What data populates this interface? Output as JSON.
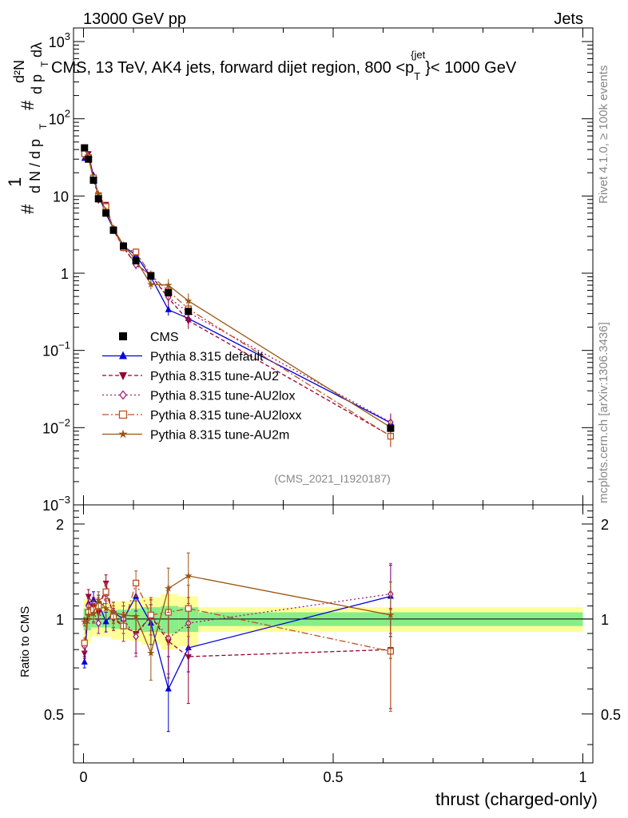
{
  "header": {
    "left": "13000 GeV pp",
    "right": "Jets",
    "title": "CMS, 13 TeV, AK4 jets, forward dijet region, 800 <p_T^{jet}< 1000 GeV",
    "title_parts": [
      "CMS, 13 TeV, AK4 jets, forward dijet region, 800 <p",
      "T",
      "{jet",
      "}< 1000 GeV"
    ]
  },
  "side": {
    "rivet": "Rivet 4.1.0, ≥ 100k events",
    "mcplots": "mcplots.cern.ch [arXiv:1306.3436]"
  },
  "watermark": "(CMS_2021_I1920187)",
  "chart_data": {
    "type": "line",
    "xlabel": "thrust (charged-only)",
    "ylabel": "1/(dN/dp_T) d²N/(dp_T dλ)",
    "ylabel_parts": {
      "num1": "#",
      "one": "1",
      "dN": "d N / d p",
      "t_sub": "T",
      "d2N": "d²N",
      "dpdl": "d p",
      "t_sub2": "T",
      "dl": "dλ"
    },
    "ratio_ylabel": "Ratio to CMS",
    "xlim": [
      -0.02,
      1.02
    ],
    "ylim": [
      0.001,
      1500
    ],
    "ratio_ylim": [
      0.35,
      2.3
    ],
    "x_ticks": [
      {
        "v": 0,
        "label": "0"
      },
      {
        "v": 0.5,
        "label": "0.5"
      },
      {
        "v": 1,
        "label": "1"
      }
    ],
    "y_ticks": [
      {
        "v": 0.001,
        "label": "10",
        "exp": "−3"
      },
      {
        "v": 0.01,
        "label": "10",
        "exp": "−2"
      },
      {
        "v": 0.1,
        "label": "10",
        "exp": "−1"
      },
      {
        "v": 1,
        "label": "1",
        "exp": ""
      },
      {
        "v": 10,
        "label": "10",
        "exp": ""
      },
      {
        "v": 100,
        "label": "10",
        "exp": "2"
      },
      {
        "v": 1000,
        "label": "10",
        "exp": "3"
      }
    ],
    "ratio_ticks": [
      {
        "v": 0.5,
        "label": "0.5"
      },
      {
        "v": 1,
        "label": "1"
      },
      {
        "v": 2,
        "label": "2"
      }
    ],
    "x": [
      0.002,
      0.01,
      0.02,
      0.03,
      0.045,
      0.06,
      0.08,
      0.105,
      0.135,
      0.17,
      0.21,
      0.615
    ],
    "data": {
      "name": "CMS",
      "values": [
        42,
        30,
        16,
        9.2,
        6.0,
        3.6,
        2.25,
        1.45,
        0.92,
        0.56,
        0.32,
        0.0098
      ],
      "band_edges": [
        0,
        0.005,
        0.015,
        0.025,
        0.035,
        0.055,
        0.065,
        0.095,
        0.115,
        0.155,
        0.19,
        0.23,
        1.0
      ],
      "band_green": [
        0.08,
        0.08,
        0.06,
        0.06,
        0.06,
        0.07,
        0.07,
        0.08,
        0.09,
        0.1,
        0.09,
        0.05
      ],
      "band_yellow": [
        0.16,
        0.16,
        0.12,
        0.12,
        0.12,
        0.14,
        0.14,
        0.15,
        0.17,
        0.2,
        0.18,
        0.09
      ]
    },
    "series": [
      {
        "name": "Pythia 8.315 default",
        "color": "#0000dd",
        "marker": "triangle-up",
        "dash": "",
        "ratio": [
          0.73,
          1.12,
          1.15,
          1.12,
          0.98,
          1.05,
          1.0,
          1.18,
          0.97,
          0.6,
          0.81,
          1.18
        ],
        "err": [
          0.03,
          0.06,
          0.07,
          0.07,
          0.07,
          0.08,
          0.1,
          0.12,
          0.14,
          0.16,
          0.13,
          0.3
        ]
      },
      {
        "name": "Pythia 8.315 tune-AU2",
        "color": "#990033",
        "marker": "triangle-down",
        "dash": "5,3",
        "ratio": [
          0.78,
          1.18,
          1.1,
          1.05,
          1.3,
          1.0,
          0.95,
          0.9,
          1.02,
          0.85,
          0.76,
          0.8
        ],
        "err": [
          0.03,
          0.06,
          0.07,
          0.07,
          0.08,
          0.08,
          0.1,
          0.12,
          0.13,
          0.2,
          0.22,
          0.28
        ]
      },
      {
        "name": "Pythia 8.315 tune-AU2lox",
        "color": "#a0207a",
        "marker": "diamond-open",
        "dash": "2,3",
        "ratio": [
          0.82,
          1.1,
          1.05,
          0.97,
          1.2,
          1.05,
          1.0,
          0.88,
          1.03,
          0.87,
          0.97,
          1.2
        ],
        "err": [
          0.03,
          0.06,
          0.07,
          0.07,
          0.08,
          0.08,
          0.1,
          0.12,
          0.14,
          0.2,
          0.2,
          0.3
        ]
      },
      {
        "name": "Pythia 8.315 tune-AU2loxx",
        "color": "#c05020",
        "marker": "square-open",
        "dash": "8,3,2,3",
        "ratio": [
          0.84,
          1.05,
          1.07,
          1.1,
          1.22,
          1.02,
          0.95,
          1.3,
          1.03,
          1.05,
          1.08,
          0.79
        ],
        "err": [
          0.03,
          0.06,
          0.07,
          0.07,
          0.08,
          0.08,
          0.1,
          0.12,
          0.14,
          0.22,
          0.2,
          0.28
        ]
      },
      {
        "name": "Pythia 8.315 tune-AU2m",
        "color": "#995511",
        "marker": "star",
        "dash": "",
        "ratio": [
          0.98,
          1.03,
          1.04,
          1.15,
          1.08,
          1.05,
          1.03,
          1.02,
          0.78,
          1.25,
          1.37,
          1.03
        ],
        "err": [
          0.03,
          0.06,
          0.07,
          0.07,
          0.08,
          0.08,
          0.1,
          0.12,
          0.14,
          0.2,
          0.25,
          0.28
        ]
      }
    ]
  }
}
